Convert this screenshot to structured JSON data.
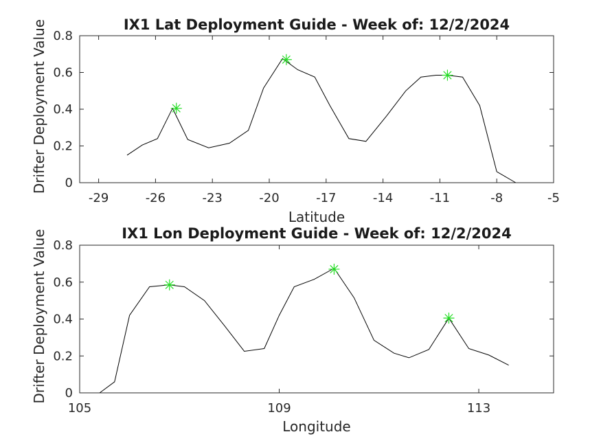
{
  "chart_data": [
    {
      "type": "line",
      "title": "IX1 Lat Deployment Guide - Week of: 12/2/2024",
      "xlabel": "Latitude",
      "ylabel": "Drifter Deployment Value",
      "xlim": [
        -30,
        -5
      ],
      "ylim": [
        0,
        0.8
      ],
      "xticks": [
        -29,
        -26,
        -23,
        -20,
        -17,
        -14,
        -11,
        -8,
        -5
      ],
      "yticks": [
        0,
        0.2,
        0.4,
        0.6,
        0.8
      ],
      "grid": true,
      "marker_color": "#22dd22",
      "line_color": "#000000",
      "x": [
        -27.5,
        -26.7,
        -25.9,
        -25.1,
        -24.3,
        -23.2,
        -22.1,
        -21.1,
        -20.3,
        -19.3,
        -18.5,
        -17.6,
        -16.8,
        -15.8,
        -14.9,
        -13.8,
        -12.8,
        -12.0,
        -11.2,
        -10.6,
        -9.8,
        -8.9,
        -8.0,
        -7.0
      ],
      "y": [
        0.15,
        0.205,
        0.24,
        0.405,
        0.235,
        0.19,
        0.215,
        0.285,
        0.515,
        0.675,
        0.615,
        0.575,
        0.42,
        0.24,
        0.225,
        0.365,
        0.5,
        0.575,
        0.585,
        0.585,
        0.575,
        0.42,
        0.06,
        0.0
      ],
      "highlights": [
        {
          "x": -24.9,
          "y": 0.405
        },
        {
          "x": -19.1,
          "y": 0.67
        },
        {
          "x": -10.6,
          "y": 0.585
        }
      ]
    },
    {
      "type": "line",
      "title": "IX1 Lon Deployment Guide - Week of: 12/2/2024",
      "xlabel": "Longitude",
      "ylabel": "Drifter Deployment Value",
      "xlim": [
        105,
        114.5
      ],
      "ylim": [
        0,
        0.8
      ],
      "xticks": [
        105,
        109,
        113
      ],
      "yticks": [
        0,
        0.2,
        0.4,
        0.6,
        0.8
      ],
      "grid": true,
      "marker_color": "#22dd22",
      "line_color": "#000000",
      "x": [
        105.4,
        105.7,
        106.0,
        106.4,
        106.8,
        107.1,
        107.5,
        107.9,
        108.3,
        108.7,
        109.0,
        109.3,
        109.7,
        110.1,
        110.5,
        110.9,
        111.3,
        111.6,
        112.0,
        112.4,
        112.8,
        113.2,
        113.6
      ],
      "y": [
        0.0,
        0.06,
        0.42,
        0.575,
        0.585,
        0.575,
        0.5,
        0.365,
        0.225,
        0.24,
        0.42,
        0.575,
        0.615,
        0.675,
        0.515,
        0.285,
        0.215,
        0.19,
        0.235,
        0.405,
        0.24,
        0.205,
        0.15
      ],
      "highlights": [
        {
          "x": 106.8,
          "y": 0.585
        },
        {
          "x": 110.1,
          "y": 0.67
        },
        {
          "x": 112.4,
          "y": 0.405
        }
      ]
    }
  ]
}
